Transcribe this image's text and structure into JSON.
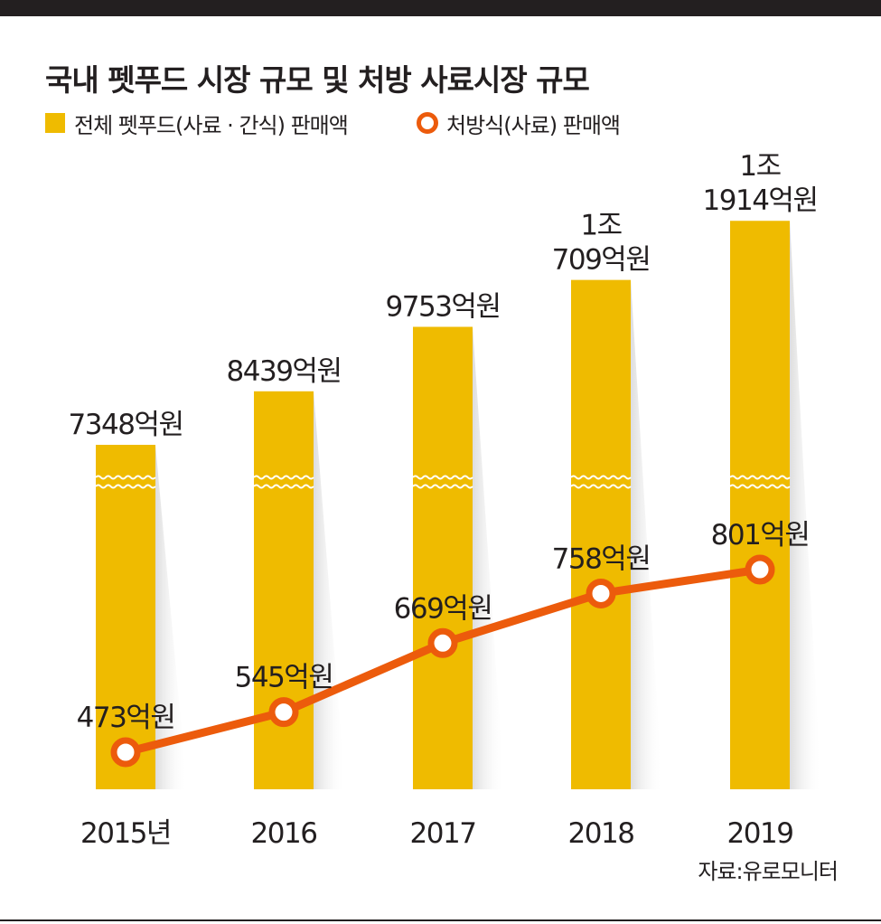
{
  "title": "국내 펫푸드 시장 규모 및 처방 사료시장 규모",
  "legend": {
    "bar": "전체 펫푸드(사료 · 간식) 판매액",
    "line": "처방식(사료) 판매액"
  },
  "source": "자료:유로모니터",
  "colors": {
    "bar": "#efbb00",
    "line": "#ec5b0c",
    "text": "#231f20"
  },
  "chart_data": {
    "type": "bar",
    "categories": [
      "2015년",
      "2016",
      "2017",
      "2018",
      "2019"
    ],
    "axis_break": true,
    "series": [
      {
        "name": "전체 펫푸드(사료 · 간식) 판매액",
        "type": "bar",
        "unit": "억원",
        "values": [
          7348,
          8439,
          9753,
          10709,
          11914
        ],
        "labels": [
          [
            "7348억원"
          ],
          [
            "8439억원"
          ],
          [
            "9753억원"
          ],
          [
            "1조",
            "709억원"
          ],
          [
            "1조",
            "1914억원"
          ]
        ]
      },
      {
        "name": "처방식(사료) 판매액",
        "type": "line",
        "unit": "억원",
        "values": [
          473,
          545,
          669,
          758,
          801
        ],
        "labels": [
          "473억원",
          "545억원",
          "669억원",
          "758억원",
          "801억원"
        ]
      }
    ]
  }
}
